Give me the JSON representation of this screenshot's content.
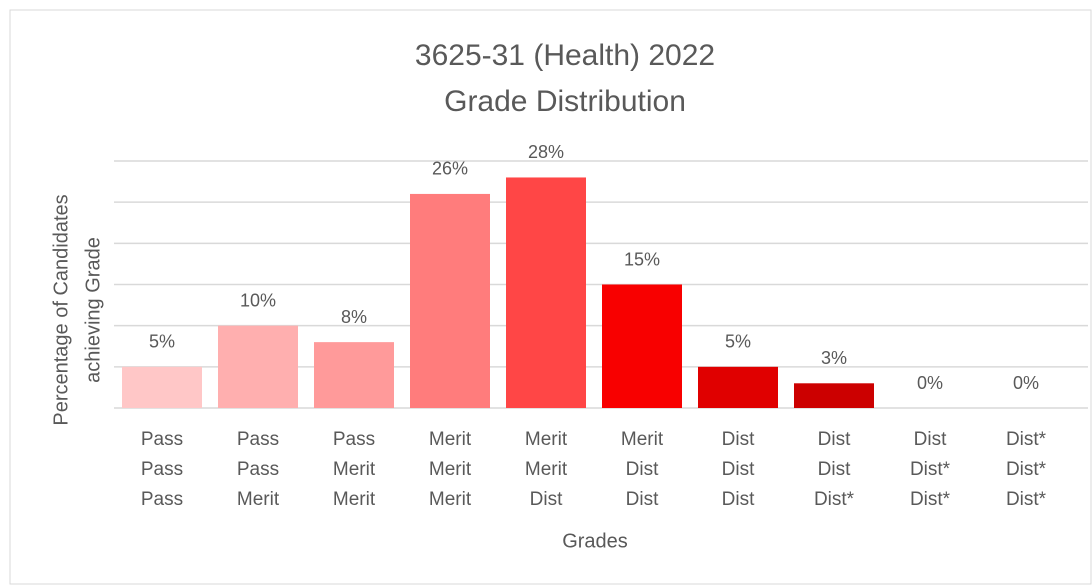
{
  "chart_data": {
    "type": "bar",
    "title": [
      "3625-31 (Health) 2022",
      "Grade Distribution"
    ],
    "y_label": [
      "Percentage of Candidates",
      "achieving Grade"
    ],
    "x_label": "Grades",
    "categories": [
      [
        "Pass",
        "Pass",
        "Pass"
      ],
      [
        "Pass",
        "Pass",
        "Merit"
      ],
      [
        "Pass",
        "Merit",
        "Merit"
      ],
      [
        "Merit",
        "Merit",
        "Merit"
      ],
      [
        "Merit",
        "Merit",
        "Dist"
      ],
      [
        "Merit",
        "Dist",
        "Dist"
      ],
      [
        "Dist",
        "Dist",
        "Dist"
      ],
      [
        "Dist",
        "Dist",
        "Dist*"
      ],
      [
        "Dist",
        "Dist*",
        "Dist*"
      ],
      [
        "Dist*",
        "Dist*",
        "Dist*"
      ]
    ],
    "values": [
      5,
      10,
      8,
      26,
      28,
      15,
      5,
      3,
      0,
      0
    ],
    "value_labels": [
      "5%",
      "10%",
      "8%",
      "26%",
      "28%",
      "15%",
      "5%",
      "3%",
      "0%",
      "0%"
    ],
    "colors": [
      "#ffc7c7",
      "#ffafaf",
      "#ff9a9a",
      "#ff7c7c",
      "#ff4646",
      "#f80000",
      "#e00000",
      "#cc0000",
      "#b00000",
      "#990000"
    ],
    "ylim": [
      0,
      30
    ],
    "yticks": [
      0,
      5,
      10,
      15,
      20,
      25,
      30
    ],
    "grid": true
  }
}
